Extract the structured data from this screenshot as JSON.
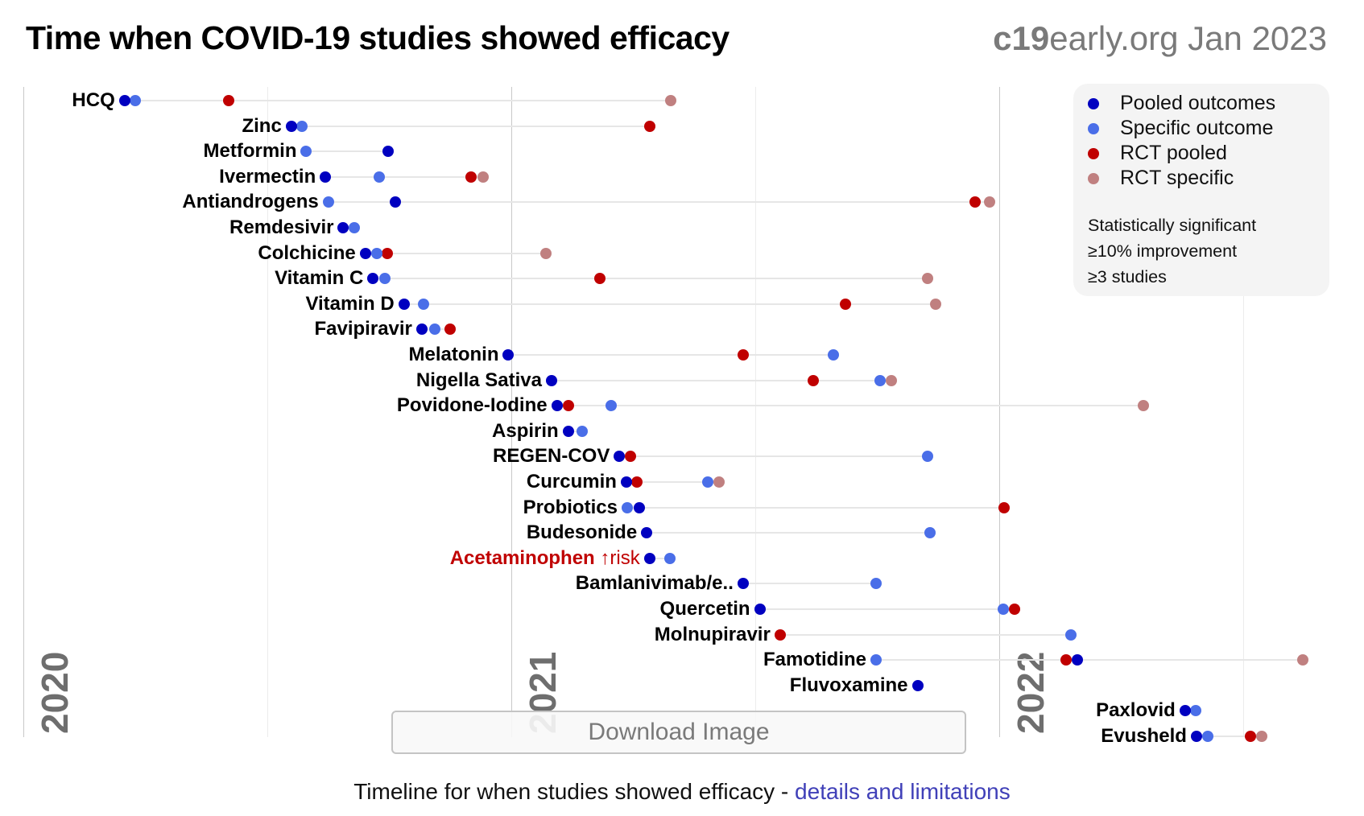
{
  "header": {
    "title": "Time when COVID-19 studies showed efficacy",
    "brand_bold": "c19",
    "brand_rest": "early.org Jan 2023"
  },
  "legend": {
    "items": [
      {
        "label": "Pooled outcomes",
        "color": "#0000c0"
      },
      {
        "label": "Specific outcome",
        "color": "#4a6ee8"
      },
      {
        "label": "RCT pooled",
        "color": "#c00000"
      },
      {
        "label": "RCT specific",
        "color": "#c08080"
      }
    ],
    "notes": [
      "Statistically significant",
      "≥10% improvement",
      "≥3 studies"
    ]
  },
  "download_button": "Download Image",
  "footer": {
    "text": "Timeline for when studies showed efficacy - ",
    "link": "details and limitations"
  },
  "chart_data": {
    "type": "scatter",
    "title": "Time when COVID-19 studies showed efficacy",
    "x_units": "months since Jan 2020",
    "xlim": [
      0,
      33
    ],
    "year_ticks": [
      {
        "label": "2020",
        "month": 0
      },
      {
        "label": "2021",
        "month": 12
      },
      {
        "label": "2022",
        "month": 24
      }
    ],
    "quarter_gridlines": [
      6,
      18,
      30
    ],
    "series_keys": [
      "pooled",
      "specific",
      "rct_pooled",
      "rct_specific"
    ],
    "rows": [
      {
        "label": "HCQ",
        "pooled": 2.5,
        "specific": 2.76,
        "rct_pooled": 5.06,
        "rct_specific": 15.93
      },
      {
        "label": "Zinc",
        "pooled": 6.6,
        "specific": 6.86,
        "rct_pooled": 15.41
      },
      {
        "label": "Metformin",
        "pooled": 8.98,
        "specific": 6.97
      },
      {
        "label": "Ivermectin",
        "pooled": 7.44,
        "specific": 8.77,
        "rct_pooled": 11.02,
        "rct_specific": 11.31
      },
      {
        "label": "Antiandrogens",
        "pooled": 9.16,
        "specific": 7.51,
        "rct_pooled": 23.41,
        "rct_specific": 23.78
      },
      {
        "label": "Remdesivir",
        "pooled": 7.88,
        "specific": 8.14
      },
      {
        "label": "Colchicine",
        "pooled": 8.42,
        "specific": 8.7,
        "rct_pooled": 8.96,
        "rct_specific": 12.87
      },
      {
        "label": "Vitamin C",
        "pooled": 8.61,
        "specific": 8.9,
        "rct_pooled": 14.19,
        "rct_specific": 22.24
      },
      {
        "label": "Vitamin D",
        "pooled": 9.37,
        "specific": 9.85,
        "rct_pooled": 20.22,
        "rct_specific": 22.44
      },
      {
        "label": "Favipiravir",
        "pooled": 9.81,
        "specific": 10.13,
        "rct_pooled": 10.5
      },
      {
        "label": "Melatonin",
        "pooled": 11.94,
        "specific": 19.94,
        "rct_pooled": 17.71
      },
      {
        "label": "Nigella Sativa",
        "pooled": 13.0,
        "specific": 21.07,
        "rct_pooled": 19.44,
        "rct_specific": 21.35
      },
      {
        "label": "Povidone-Iodine",
        "pooled": 13.13,
        "specific": 14.47,
        "rct_pooled": 13.41,
        "rct_specific": 27.56
      },
      {
        "label": "Aspirin",
        "pooled": 13.41,
        "specific": 13.76
      },
      {
        "label": "REGEN-COV",
        "pooled": 14.67,
        "specific": 22.24,
        "rct_pooled": 14.95
      },
      {
        "label": "Curcumin",
        "pooled": 14.84,
        "specific": 16.84,
        "rct_pooled": 15.1,
        "rct_specific": 17.12
      },
      {
        "label": "Probiotics",
        "pooled": 15.15,
        "specific": 14.86,
        "rct_pooled": 24.13
      },
      {
        "label": "Budesonide",
        "pooled": 15.34,
        "specific": 22.31
      },
      {
        "label": "Acetaminophen",
        "risk": "↑risk",
        "pooled": 15.41,
        "specific": 15.91
      },
      {
        "label": "Bamlanivimab/e..",
        "pooled": 17.71,
        "specific": 20.98
      },
      {
        "label": "Quercetin",
        "pooled": 18.12,
        "specific": 24.11,
        "rct_pooled": 24.39
      },
      {
        "label": "Molnupiravir",
        "specific": 25.78,
        "rct_pooled": 18.62
      },
      {
        "label": "Famotidine",
        "pooled": 25.93,
        "specific": 20.98,
        "rct_pooled": 25.65,
        "rct_specific": 31.47
      },
      {
        "label": "Fluvoxamine",
        "pooled": 22.0
      },
      {
        "label": "Paxlovid",
        "pooled": 28.58,
        "specific": 28.84
      },
      {
        "label": "Evusheld",
        "pooled": 28.86,
        "specific": 29.14,
        "rct_pooled": 30.18,
        "rct_specific": 30.47
      }
    ]
  }
}
